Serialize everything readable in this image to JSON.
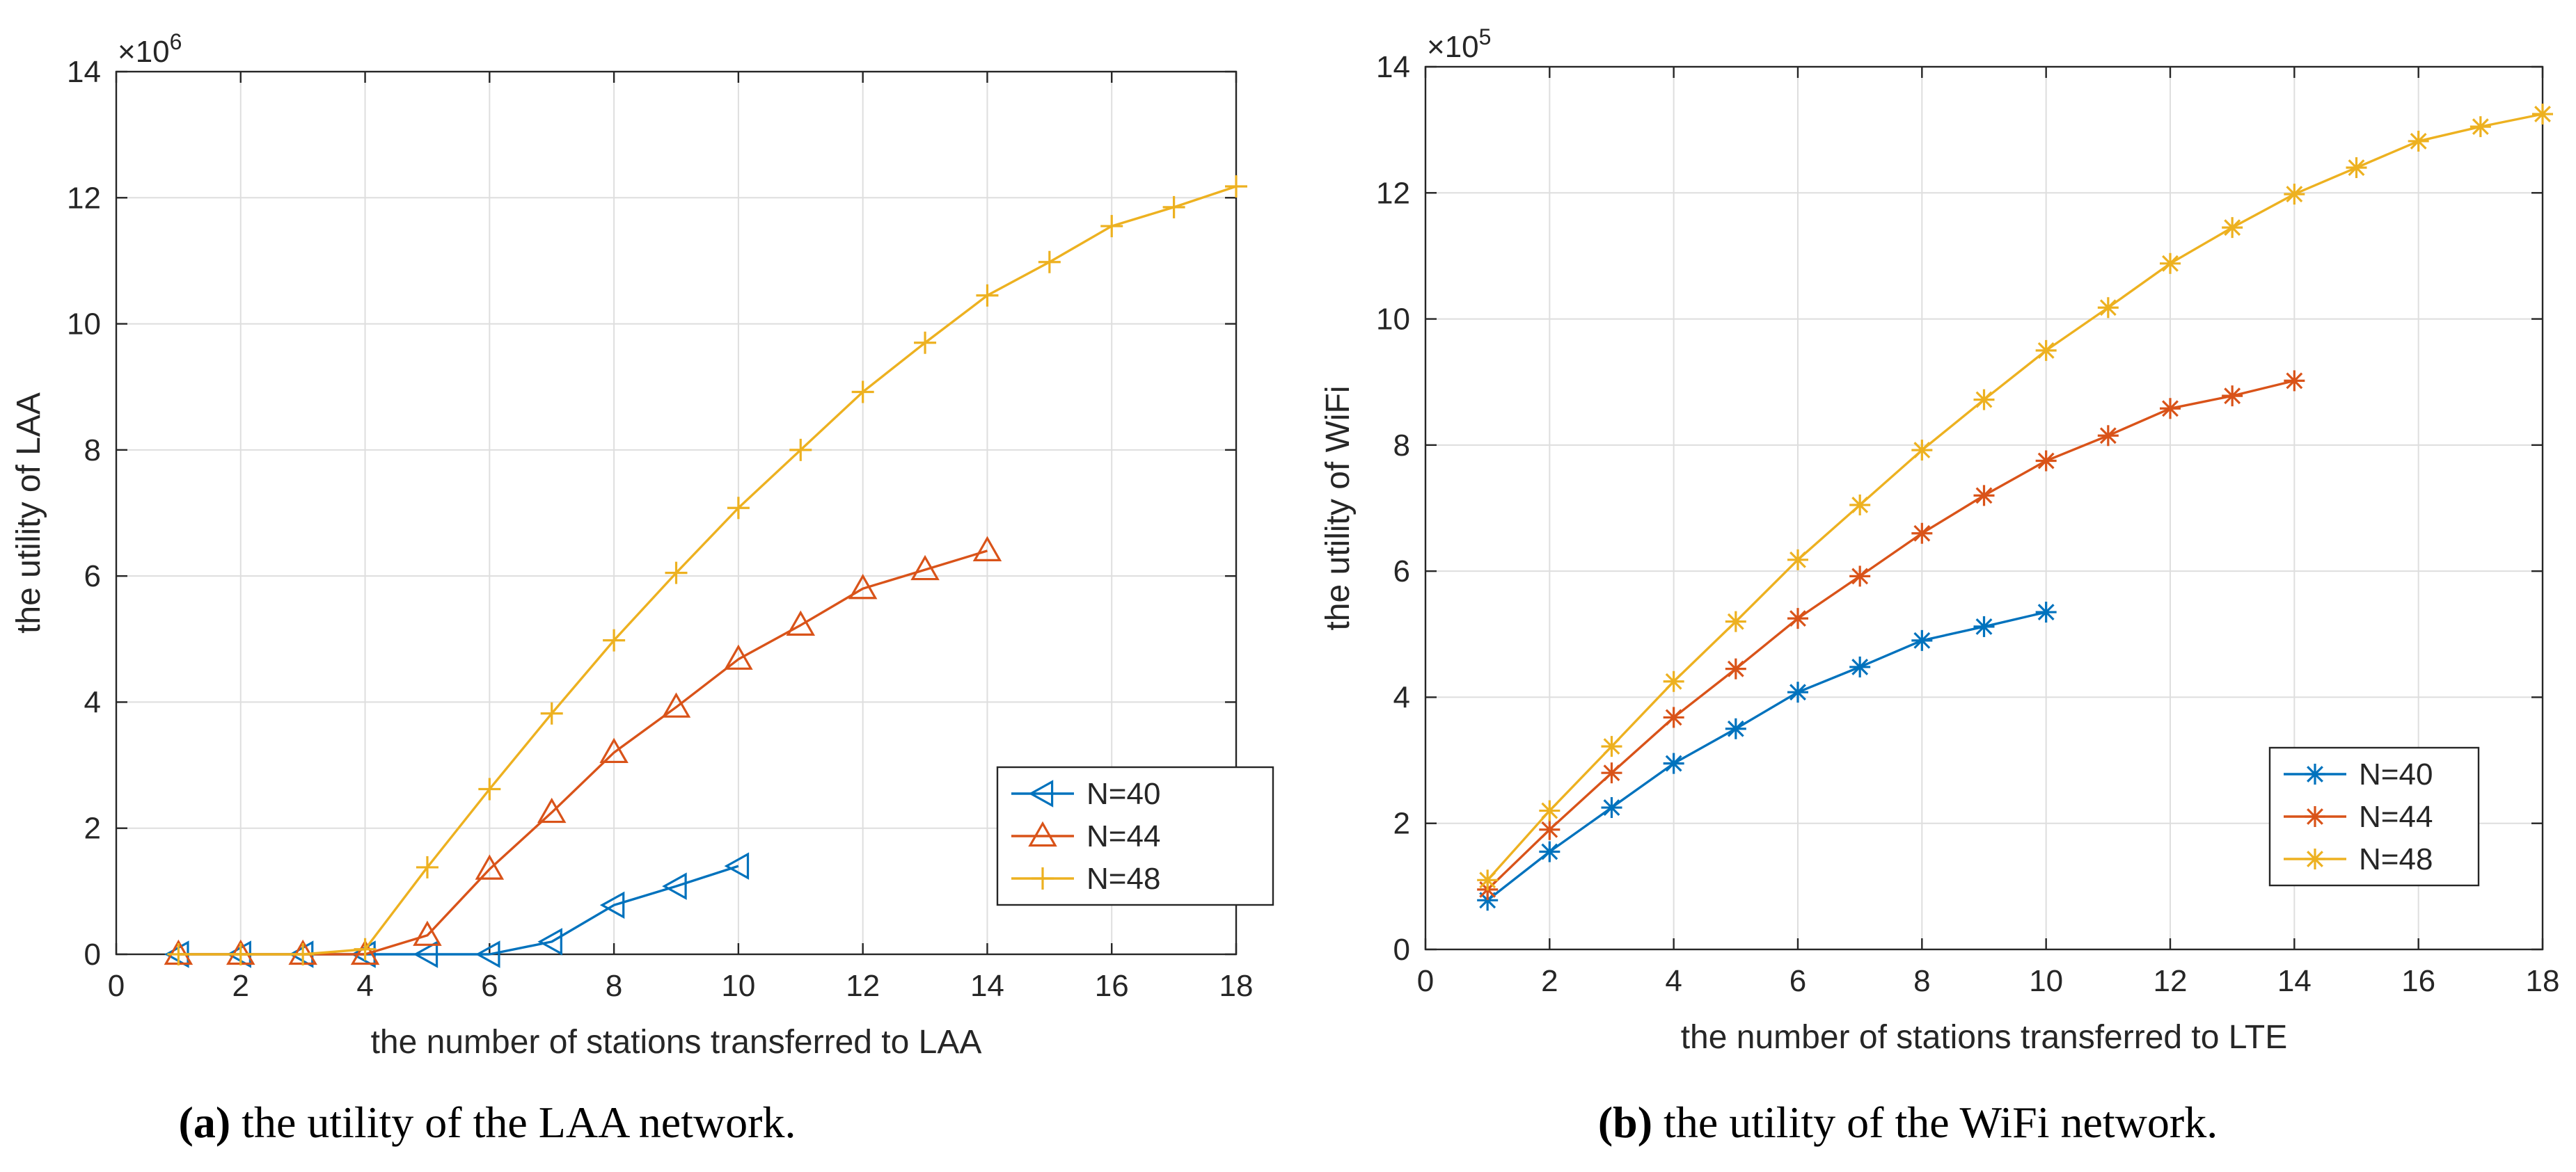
{
  "chart_data": [
    {
      "type": "line",
      "ylabel": "the utility of LAA",
      "xlabel": "the number of stations transferred to LAA",
      "exponent_label": "×10",
      "exponent_power": "6",
      "caption_label": "(a)",
      "caption_text": " the utility of the LAA network.",
      "xlim": [
        0,
        18
      ],
      "ylim": [
        0,
        14
      ],
      "xticks": [
        "0",
        "2",
        "4",
        "6",
        "8",
        "10",
        "12",
        "14",
        "16",
        "18"
      ],
      "yticks": [
        "0",
        "2",
        "4",
        "6",
        "8",
        "10",
        "12",
        "14"
      ],
      "grid": true,
      "legend_position": "lower-right",
      "series": [
        {
          "name": "N=40",
          "color": "#0072BD",
          "marker": "triangle-left",
          "x": [
            1,
            2,
            3,
            4,
            5,
            6,
            7,
            8,
            9,
            10
          ],
          "values": [
            0,
            0,
            0,
            0,
            0,
            0,
            0.2,
            0.78,
            1.08,
            1.4
          ]
        },
        {
          "name": "N=44",
          "color": "#D95319",
          "marker": "triangle-up",
          "x": [
            1,
            2,
            3,
            4,
            5,
            6,
            7,
            8,
            9,
            10,
            11,
            12,
            13,
            14
          ],
          "values": [
            0,
            0,
            0,
            0,
            0.3,
            1.35,
            2.25,
            3.2,
            3.92,
            4.68,
            5.22,
            5.8,
            6.1,
            6.4
          ]
        },
        {
          "name": "N=48",
          "color": "#EDB120",
          "marker": "plus",
          "x": [
            1,
            2,
            3,
            4,
            5,
            6,
            7,
            8,
            9,
            10,
            11,
            12,
            13,
            14,
            15,
            16,
            17,
            18
          ],
          "values": [
            0,
            0,
            0,
            0.08,
            1.38,
            2.62,
            3.82,
            4.98,
            6.05,
            7.08,
            8.0,
            8.92,
            9.7,
            10.45,
            10.98,
            11.55,
            11.85,
            12.18
          ]
        }
      ]
    },
    {
      "type": "line",
      "ylabel": "the utility of WiFi",
      "xlabel": "the number of stations transferred to LTE",
      "exponent_label": "×10",
      "exponent_power": "5",
      "caption_label": "(b)",
      "caption_text": " the utility of the WiFi network.",
      "xlim": [
        0,
        18
      ],
      "ylim": [
        0,
        14
      ],
      "xticks": [
        "0",
        "2",
        "4",
        "6",
        "8",
        "10",
        "12",
        "14",
        "16",
        "18"
      ],
      "yticks": [
        "0",
        "2",
        "4",
        "6",
        "8",
        "10",
        "12",
        "14"
      ],
      "grid": true,
      "legend_position": "lower-right",
      "series": [
        {
          "name": "N=40",
          "color": "#0072BD",
          "marker": "asterisk",
          "x": [
            1,
            2,
            3,
            4,
            5,
            6,
            7,
            8,
            9,
            10
          ],
          "values": [
            0.78,
            1.55,
            2.25,
            2.95,
            3.5,
            4.08,
            4.48,
            4.9,
            5.12,
            5.35
          ]
        },
        {
          "name": "N=44",
          "color": "#D95319",
          "marker": "asterisk",
          "x": [
            1,
            2,
            3,
            4,
            5,
            6,
            7,
            8,
            9,
            10,
            11,
            12,
            13,
            14
          ],
          "values": [
            0.95,
            1.9,
            2.8,
            3.68,
            4.45,
            5.25,
            5.92,
            6.6,
            7.2,
            7.75,
            8.15,
            8.58,
            8.78,
            9.02
          ]
        },
        {
          "name": "N=48",
          "color": "#EDB120",
          "marker": "asterisk",
          "x": [
            1,
            2,
            3,
            4,
            5,
            6,
            7,
            8,
            9,
            10,
            11,
            12,
            13,
            14,
            15,
            16,
            17,
            18
          ],
          "values": [
            1.1,
            2.2,
            3.22,
            4.25,
            5.2,
            6.18,
            7.05,
            7.92,
            8.72,
            9.5,
            10.18,
            10.88,
            11.45,
            11.98,
            12.4,
            12.82,
            13.05,
            13.25
          ]
        }
      ]
    }
  ]
}
